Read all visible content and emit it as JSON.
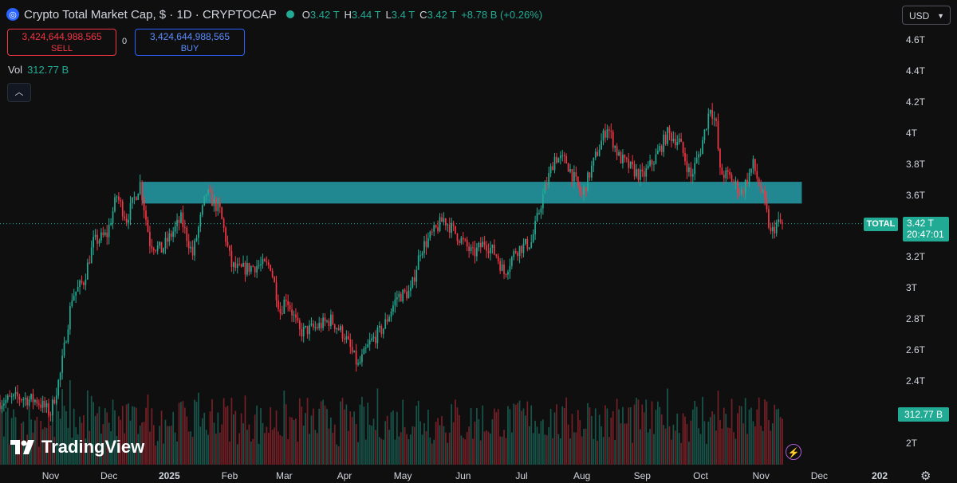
{
  "header": {
    "title": "Crypto Total Market Cap, $ · 1D · CRYPTOCAP",
    "ohlc": [
      {
        "k": "O",
        "v": "3.42 T"
      },
      {
        "k": "H",
        "v": "3.44 T"
      },
      {
        "k": "L",
        "v": "3.4 T"
      },
      {
        "k": "C",
        "v": "3.42 T"
      },
      {
        "k": "",
        "v": "+8.78 B (+0.26%)"
      }
    ]
  },
  "trade": {
    "sell_value": "3,424,644,988,565",
    "sell_label": "SELL",
    "buy_value": "3,424,644,988,565",
    "buy_label": "BUY",
    "spread": "0"
  },
  "volume": {
    "label": "Vol",
    "value": "312.77 B"
  },
  "currency": "USD",
  "price_tag": {
    "symbol": "TOTAL",
    "price": "3.42 T",
    "countdown": "20:47:01"
  },
  "volume_tag": "312.77 B",
  "brand": "TradingView",
  "colors": {
    "up": "#22ab94",
    "down": "#f23645",
    "zone": "#26a3b0",
    "bg": "#0f0f0f"
  },
  "chart_data": {
    "type": "candlestick",
    "title": "Crypto Total Market Cap, $ · 1D · CRYPTOCAP",
    "y_unit": "T",
    "ylim": [
      1.95,
      4.7
    ],
    "y_ticks": [
      {
        "label": "4.6T",
        "value": 4.6
      },
      {
        "label": "4.4T",
        "value": 4.4
      },
      {
        "label": "4.2T",
        "value": 4.2
      },
      {
        "label": "4T",
        "value": 4.0
      },
      {
        "label": "3.8T",
        "value": 3.8
      },
      {
        "label": "3.6T",
        "value": 3.6
      },
      {
        "label": "3.2T",
        "value": 3.2
      },
      {
        "label": "3T",
        "value": 3.0
      },
      {
        "label": "2.8T",
        "value": 2.8
      },
      {
        "label": "2.6T",
        "value": 2.6
      },
      {
        "label": "2.4T",
        "value": 2.4
      },
      {
        "label": "2T",
        "value": 2.0
      }
    ],
    "x_ticks": [
      {
        "label": "Nov",
        "date": "2024-11-01",
        "bold": false
      },
      {
        "label": "Dec",
        "date": "2024-12-01",
        "bold": false
      },
      {
        "label": "2025",
        "date": "2025-01-01",
        "bold": true
      },
      {
        "label": "Feb",
        "date": "2025-02-01",
        "bold": false
      },
      {
        "label": "Mar",
        "date": "2025-03-01",
        "bold": false
      },
      {
        "label": "Apr",
        "date": "2025-04-01",
        "bold": false
      },
      {
        "label": "May",
        "date": "2025-05-01",
        "bold": false
      },
      {
        "label": "Jun",
        "date": "2025-06-01",
        "bold": false
      },
      {
        "label": "Jul",
        "date": "2025-07-01",
        "bold": false
      },
      {
        "label": "Aug",
        "date": "2025-08-01",
        "bold": false
      },
      {
        "label": "Sep",
        "date": "2025-09-01",
        "bold": false
      },
      {
        "label": "Oct",
        "date": "2025-10-01",
        "bold": false
      },
      {
        "label": "Nov",
        "date": "2025-11-01",
        "bold": false
      },
      {
        "label": "Dec",
        "date": "2025-12-01",
        "bold": false
      },
      {
        "label": "202",
        "date": "2026-01-01",
        "bold": true
      }
    ],
    "x_range": [
      "2024-10-06",
      "2026-01-10"
    ],
    "last_price": 3.42,
    "last_date": "2025-11-12",
    "zone": {
      "from": "2024-12-18",
      "to": "2025-11-22",
      "low": 3.55,
      "high": 3.69
    },
    "path": [
      [
        "2024-10-06",
        2.27
      ],
      [
        "2024-10-15",
        2.3
      ],
      [
        "2024-10-25",
        2.28
      ],
      [
        "2024-11-01",
        2.2
      ],
      [
        "2024-11-06",
        2.45
      ],
      [
        "2024-11-12",
        2.95
      ],
      [
        "2024-11-18",
        3.05
      ],
      [
        "2024-11-23",
        3.3
      ],
      [
        "2024-11-30",
        3.35
      ],
      [
        "2024-12-05",
        3.6
      ],
      [
        "2024-12-10",
        3.45
      ],
      [
        "2024-12-17",
        3.68
      ],
      [
        "2024-12-22",
        3.3
      ],
      [
        "2024-12-28",
        3.25
      ],
      [
        "2025-01-02",
        3.35
      ],
      [
        "2025-01-07",
        3.45
      ],
      [
        "2025-01-13",
        3.22
      ],
      [
        "2025-01-20",
        3.62
      ],
      [
        "2025-01-27",
        3.5
      ],
      [
        "2025-02-02",
        3.15
      ],
      [
        "2025-02-06",
        3.12
      ],
      [
        "2025-02-15",
        3.15
      ],
      [
        "2025-02-22",
        3.15
      ],
      [
        "2025-02-27",
        2.85
      ],
      [
        "2025-03-02",
        2.95
      ],
      [
        "2025-03-09",
        2.72
      ],
      [
        "2025-03-17",
        2.75
      ],
      [
        "2025-03-25",
        2.8
      ],
      [
        "2025-04-01",
        2.7
      ],
      [
        "2025-04-08",
        2.5
      ],
      [
        "2025-04-14",
        2.65
      ],
      [
        "2025-04-21",
        2.75
      ],
      [
        "2025-04-28",
        2.95
      ],
      [
        "2025-05-05",
        2.98
      ],
      [
        "2025-05-10",
        3.25
      ],
      [
        "2025-05-22",
        3.45
      ],
      [
        "2025-06-01",
        3.3
      ],
      [
        "2025-06-06",
        3.22
      ],
      [
        "2025-06-12",
        3.3
      ],
      [
        "2025-06-18",
        3.22
      ],
      [
        "2025-06-22",
        3.1
      ],
      [
        "2025-06-28",
        3.25
      ],
      [
        "2025-07-06",
        3.3
      ],
      [
        "2025-07-12",
        3.6
      ],
      [
        "2025-07-18",
        3.85
      ],
      [
        "2025-07-24",
        3.82
      ],
      [
        "2025-08-01",
        3.6
      ],
      [
        "2025-08-08",
        3.85
      ],
      [
        "2025-08-14",
        4.05
      ],
      [
        "2025-08-20",
        3.85
      ],
      [
        "2025-08-26",
        3.78
      ],
      [
        "2025-09-01",
        3.72
      ],
      [
        "2025-09-08",
        3.85
      ],
      [
        "2025-09-14",
        4.0
      ],
      [
        "2025-09-20",
        3.95
      ],
      [
        "2025-09-26",
        3.72
      ],
      [
        "2025-10-01",
        3.9
      ],
      [
        "2025-10-06",
        4.18
      ],
      [
        "2025-10-09",
        4.05
      ],
      [
        "2025-10-11",
        3.75
      ],
      [
        "2025-10-16",
        3.72
      ],
      [
        "2025-10-22",
        3.62
      ],
      [
        "2025-10-28",
        3.8
      ],
      [
        "2025-11-03",
        3.55
      ],
      [
        "2025-11-06",
        3.35
      ],
      [
        "2025-11-09",
        3.42
      ],
      [
        "2025-11-12",
        3.42
      ]
    ]
  }
}
